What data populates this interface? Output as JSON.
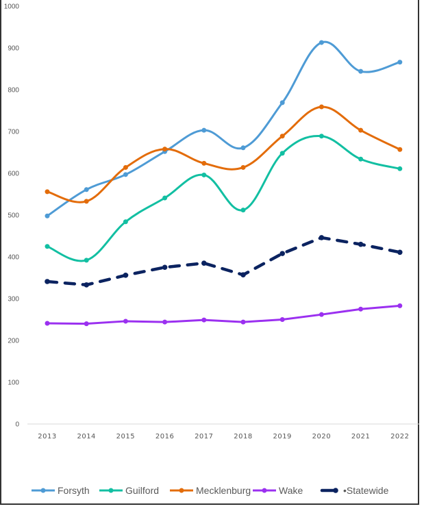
{
  "chart_data": {
    "type": "line",
    "title": "",
    "xlabel": "",
    "ylabel": "",
    "ylim": [
      0,
      1000
    ],
    "yticks": [
      "0",
      "100",
      "200",
      "300",
      "400",
      "500",
      "600",
      "700",
      "800",
      "900",
      "1000"
    ],
    "categories": [
      "2013",
      "2014",
      "2015",
      "2016",
      "2017",
      "2018",
      "2019",
      "2020",
      "2021",
      "2022"
    ],
    "grid": false,
    "legend_position": "bottom",
    "series": [
      {
        "name": "Forsyth",
        "color": "#4E9BD5",
        "style": "solid",
        "smooth": true,
        "values": [
          498,
          561,
          597,
          652,
          703,
          661,
          769,
          913,
          844,
          866
        ]
      },
      {
        "name": "Guilford",
        "color": "#12BFA2",
        "style": "solid",
        "smooth": true,
        "values": [
          425,
          392,
          484,
          541,
          596,
          512,
          648,
          689,
          634,
          611
        ]
      },
      {
        "name": "Mecklenburg",
        "color": "#E36C0A",
        "style": "solid",
        "smooth": true,
        "values": [
          556,
          533,
          614,
          658,
          624,
          614,
          689,
          759,
          703,
          657
        ]
      },
      {
        "name": "Wake",
        "color": "#9B30F0",
        "style": "solid",
        "smooth": false,
        "values": [
          241,
          240,
          246,
          244,
          249,
          244,
          250,
          262,
          275,
          283
        ]
      },
      {
        "name": "Statewide",
        "color": "#0B2360",
        "style": "dashed",
        "smooth": false,
        "values": [
          341,
          333,
          356,
          375,
          385,
          357,
          408,
          446,
          430,
          411
        ]
      }
    ],
    "legend_labels": [
      "Forsyth",
      "Guilford",
      "Mecklenburg",
      "Wake",
      "•Statewide"
    ]
  }
}
